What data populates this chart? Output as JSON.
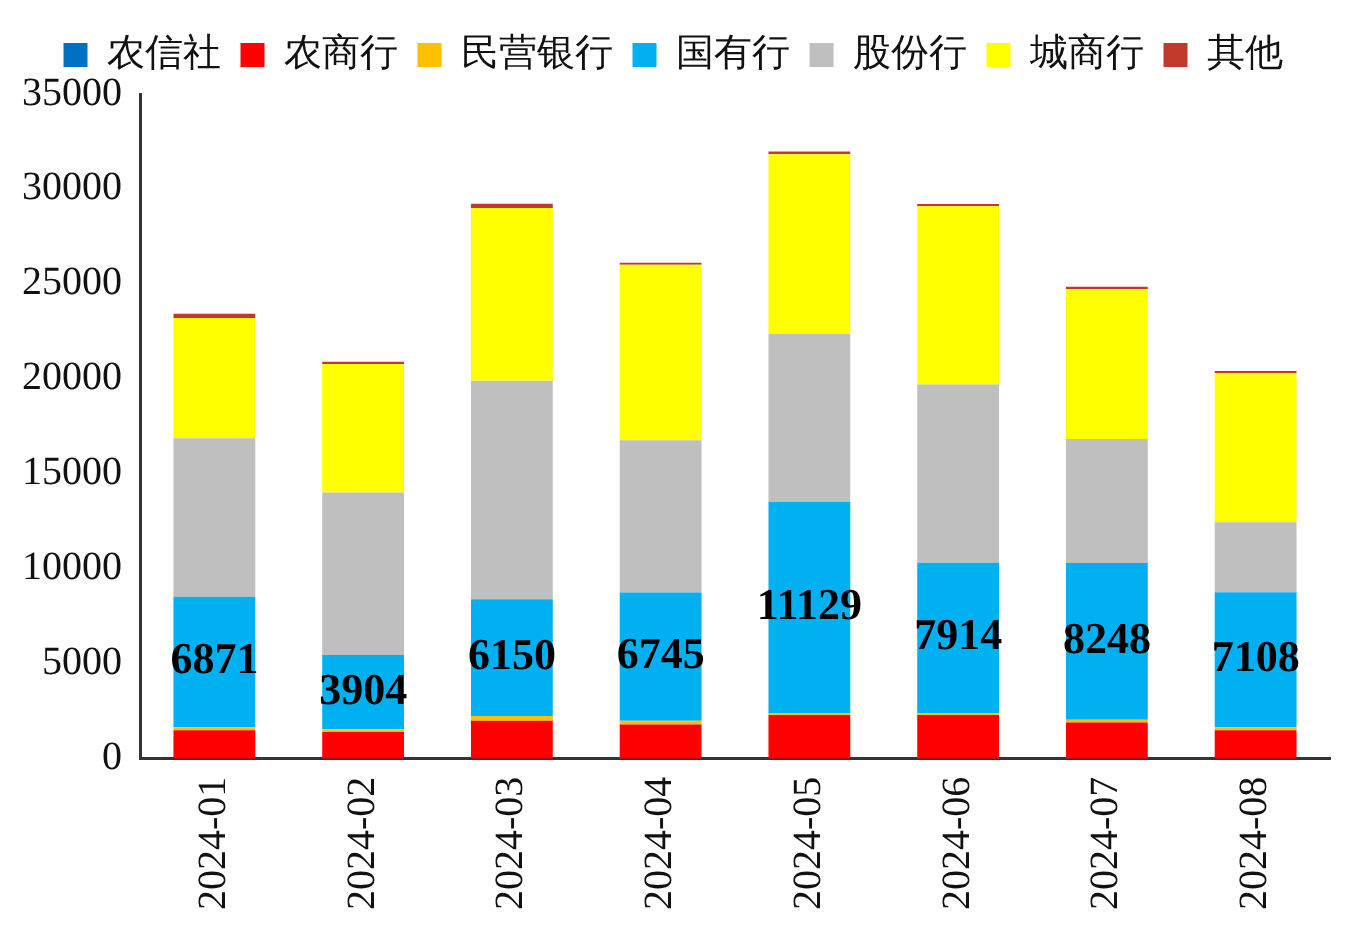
{
  "chart_data": {
    "type": "bar",
    "stacked": true,
    "categories": [
      "2024-01",
      "2024-02",
      "2024-03",
      "2024-04",
      "2024-05",
      "2024-06",
      "2024-07",
      "2024-08"
    ],
    "series": [
      {
        "name": "农信社",
        "color": "#0070c0",
        "values": [
          0,
          0,
          0,
          0,
          0,
          0,
          0,
          0
        ]
      },
      {
        "name": "农商行",
        "color": "#ff0000",
        "values": [
          1500,
          1400,
          2000,
          1800,
          2300,
          2300,
          1900,
          1500
        ]
      },
      {
        "name": "民营银行",
        "color": "#ffc000",
        "values": [
          150,
          150,
          250,
          200,
          100,
          100,
          150,
          150
        ]
      },
      {
        "name": "国有行",
        "color": "#00b0f0",
        "values": [
          6871,
          3904,
          6150,
          6745,
          11129,
          7914,
          8248,
          7108
        ],
        "value_labels": [
          "6871",
          "3904",
          "6150",
          "6745",
          "11129",
          "7914",
          "8248",
          "7108"
        ]
      },
      {
        "name": "股份行",
        "color": "#bfbfbf",
        "values": [
          8350,
          8560,
          11500,
          8020,
          8830,
          9390,
          6540,
          3690
        ]
      },
      {
        "name": "城商行",
        "color": "#ffff00",
        "values": [
          6340,
          6775,
          9100,
          9245,
          9465,
          9390,
          7900,
          7850
        ]
      },
      {
        "name": "其他",
        "color": "#c0392b",
        "values": [
          220,
          110,
          220,
          110,
          150,
          110,
          110,
          110
        ]
      }
    ],
    "ylim": [
      0,
      35000
    ],
    "yticks": [
      0,
      5000,
      10000,
      15000,
      20000,
      25000,
      30000,
      35000
    ],
    "grid": false,
    "legend": "top"
  }
}
